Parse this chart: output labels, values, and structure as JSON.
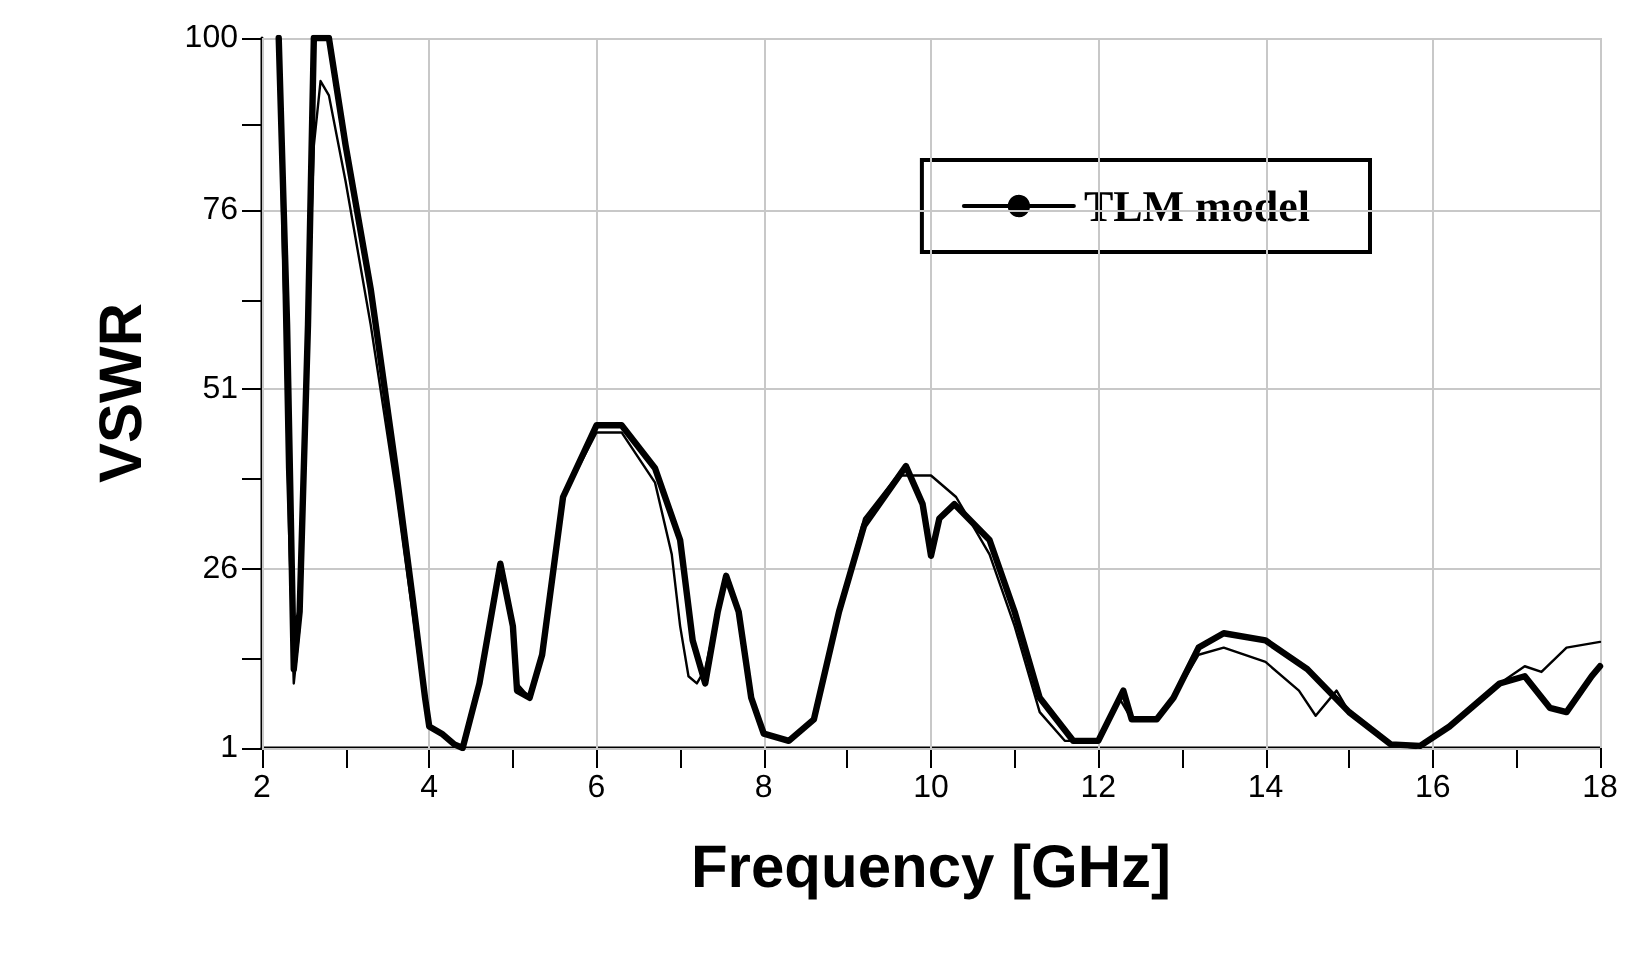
{
  "chart_data": {
    "type": "line",
    "xlabel": "Frequency [GHz]",
    "ylabel": "VSWR",
    "xlim": [
      2,
      18
    ],
    "ylim": [
      1,
      100
    ],
    "xticks": [
      2,
      {
        "value": 3,
        "label": null
      },
      4,
      {
        "value": 5,
        "label": null
      },
      6,
      {
        "value": 7,
        "label": null
      },
      8,
      {
        "value": 9,
        "label": null
      },
      10,
      {
        "value": 11,
        "label": null
      },
      12,
      {
        "value": 13,
        "label": null
      },
      14,
      {
        "value": 15,
        "label": null
      },
      16,
      {
        "value": 17,
        "label": null
      },
      18
    ],
    "yticks": [
      1,
      {
        "value": 13.5,
        "label": null
      },
      26,
      {
        "value": 38.5,
        "label": null
      },
      51,
      {
        "value": 63.5,
        "label": null
      },
      76,
      {
        "value": 88,
        "label": null
      },
      100
    ],
    "grid": true,
    "legend": "top right",
    "marker": "none",
    "line_style": "solid",
    "series": [
      {
        "name": "TLM model",
        "color": "#000000",
        "x": [
          2.2,
          2.3,
          2.38,
          2.45,
          2.55,
          2.62,
          2.7,
          2.8,
          3.0,
          3.3,
          3.6,
          3.8,
          3.95,
          4.0,
          4.15,
          4.3,
          4.4,
          4.6,
          4.85,
          5.0,
          5.05,
          5.2,
          5.35,
          5.6,
          6.0,
          6.3,
          6.7,
          6.9,
          7.0,
          7.1,
          7.2,
          7.3,
          7.45,
          7.55,
          7.7,
          7.85,
          8.0,
          8.3,
          8.6,
          8.9,
          9.2,
          9.6,
          10.0,
          10.3,
          10.7,
          11.0,
          11.3,
          11.6,
          12.0,
          12.25,
          12.4,
          12.7,
          12.9,
          13.2,
          13.5,
          14.0,
          14.4,
          14.6,
          14.85,
          15.0,
          15.5,
          15.8,
          16.2,
          16.8,
          17.1,
          17.3,
          17.6,
          18.0
        ],
        "values": [
          100,
          40,
          10,
          18,
          60,
          85,
          94,
          92,
          80,
          60,
          37,
          20,
          7,
          4,
          3,
          1.5,
          1,
          10,
          26,
          17,
          10,
          8,
          14,
          36,
          45,
          45,
          38,
          28,
          18,
          11,
          10,
          12,
          20,
          25,
          20,
          8,
          3,
          2,
          5,
          20,
          33,
          39,
          39,
          36,
          28,
          18,
          6,
          2,
          2,
          8,
          5,
          5,
          8,
          14,
          15,
          13,
          9,
          5.5,
          9,
          6,
          1.5,
          1,
          4,
          10,
          12.4,
          11.6,
          15,
          15.8
        ]
      },
      {
        "color": "#000000",
        "x": [
          2.2,
          2.3,
          2.38,
          2.45,
          2.55,
          2.62,
          2.8,
          3.0,
          3.3,
          3.6,
          3.8,
          3.95,
          4.0,
          4.15,
          4.3,
          4.4,
          4.6,
          4.85,
          5.0,
          5.05,
          5.2,
          5.35,
          5.6,
          6.0,
          6.3,
          6.7,
          7.0,
          7.15,
          7.3,
          7.45,
          7.55,
          7.7,
          7.85,
          8.0,
          8.3,
          8.6,
          8.9,
          9.2,
          9.7,
          9.9,
          10.0,
          10.1,
          10.28,
          10.7,
          11.0,
          11.3,
          11.7,
          12.0,
          12.3,
          12.4,
          12.7,
          12.9,
          13.2,
          13.5,
          14.0,
          14.5,
          15.0,
          15.5,
          15.85,
          16.2,
          16.8,
          17.1,
          17.4,
          17.6,
          17.9,
          18.0
        ],
        "values": [
          100,
          60,
          12,
          20,
          60,
          100,
          100,
          85,
          65,
          40,
          22,
          8,
          4,
          3,
          1.5,
          1,
          10,
          26.7,
          18,
          9,
          8,
          14,
          36,
          46,
          46,
          40,
          30,
          16,
          10,
          20,
          25,
          20,
          8,
          3,
          2,
          5,
          20,
          32,
          40.3,
          35,
          27.8,
          33,
          35,
          30,
          20,
          8,
          2,
          2,
          9,
          5,
          5,
          8,
          15,
          17,
          16,
          12,
          6,
          1.5,
          1.3,
          4,
          10,
          11,
          6.6,
          6,
          11,
          12.4
        ]
      }
    ]
  }
}
